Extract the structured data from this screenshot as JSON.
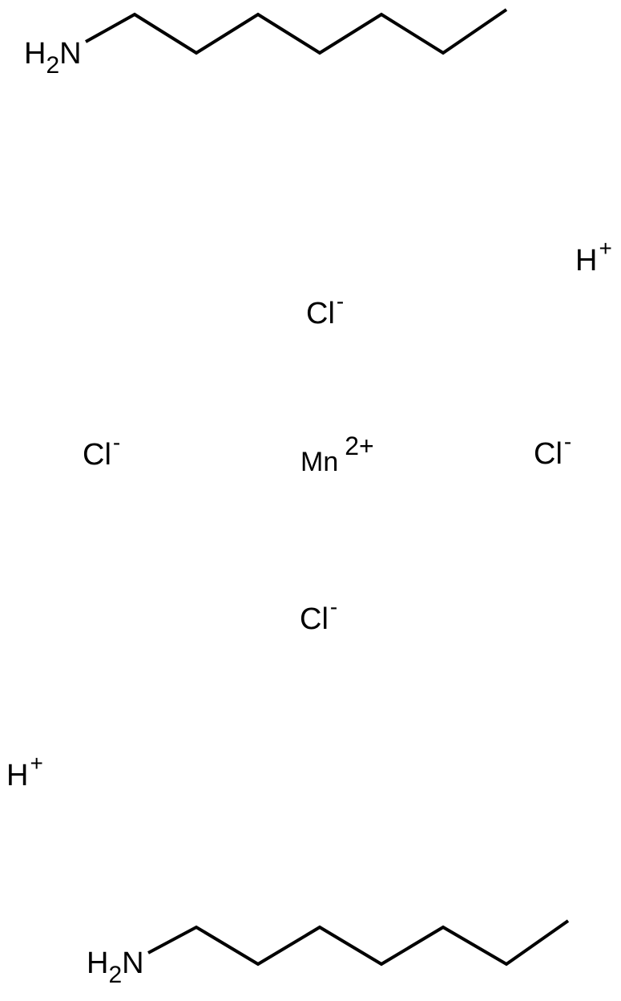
{
  "molecules": [
    {
      "name": "heptylamine",
      "amine": {
        "h": "H",
        "sub": "2",
        "n": "N"
      },
      "chain_atoms": 7
    },
    {
      "name": "heptylamine",
      "amine": {
        "h": "H",
        "sub": "2",
        "n": "N"
      },
      "chain_atoms": 7
    }
  ],
  "ions": {
    "metal": {
      "symbol": "Mn",
      "charge": "2+"
    },
    "chlorides": [
      {
        "symbol": "Cl",
        "charge": "-"
      },
      {
        "symbol": "Cl",
        "charge": "-"
      },
      {
        "symbol": "Cl",
        "charge": "-"
      },
      {
        "symbol": "Cl",
        "charge": "-"
      }
    ],
    "protons": [
      {
        "symbol": "H",
        "charge": "+"
      },
      {
        "symbol": "H",
        "charge": "+"
      }
    ]
  },
  "colors": {
    "ink": "#000000",
    "background": "#ffffff"
  }
}
